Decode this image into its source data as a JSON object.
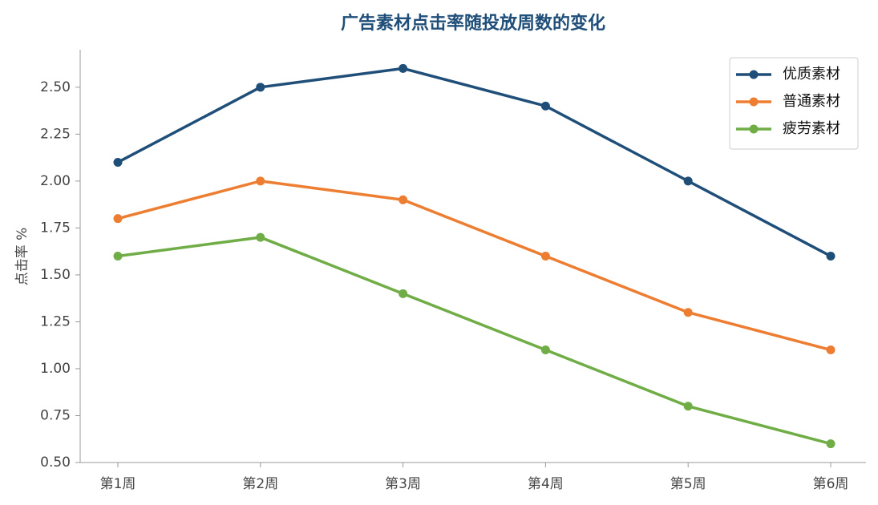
{
  "chart_data": {
    "type": "line",
    "title": "广告素材点击率随投放周数的变化",
    "y_label": "点击率 %",
    "categories": [
      "第1周",
      "第2周",
      "第3周",
      "第4周",
      "第5周",
      "第6周"
    ],
    "series": [
      {
        "name": "优质素材",
        "color": "#1f4e79",
        "values": [
          2.1,
          2.5,
          2.6,
          2.4,
          2.0,
          1.6
        ]
      },
      {
        "name": "普通素材",
        "color": "#ed7d31",
        "values": [
          1.8,
          2.0,
          1.9,
          1.6,
          1.3,
          1.1
        ]
      },
      {
        "name": "疲劳素材",
        "color": "#70ad47",
        "values": [
          1.6,
          1.7,
          1.4,
          1.1,
          0.8,
          0.6
        ]
      }
    ],
    "ylim": [
      0.5,
      2.7
    ],
    "yticks": [
      {
        "value": 0.5,
        "label": "0.50"
      },
      {
        "value": 0.75,
        "label": "0.75"
      },
      {
        "value": 1.0,
        "label": "1.00"
      },
      {
        "value": 1.25,
        "label": "1.25"
      },
      {
        "value": 1.5,
        "label": "1.50"
      },
      {
        "value": 1.75,
        "label": "1.75"
      },
      {
        "value": 2.0,
        "label": "2.00"
      },
      {
        "value": 2.25,
        "label": "2.25"
      },
      {
        "value": 2.5,
        "label": "2.50"
      }
    ],
    "legend": "upper right"
  }
}
